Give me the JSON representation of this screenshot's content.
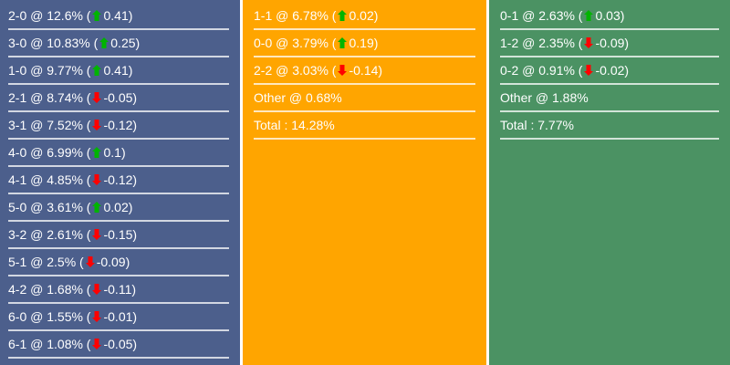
{
  "colors": {
    "up": "#00b400",
    "down": "#ff0000",
    "home": "#4c5f8c",
    "draw": "#ffa500",
    "away": "#4b9263"
  },
  "columns": [
    {
      "name": "home",
      "rows": [
        {
          "label": "2-0 @ 12.6% (",
          "trend": "up",
          "change": "0.41"
        },
        {
          "label": "3-0 @ 10.83% (",
          "trend": "up",
          "change": "0.25"
        },
        {
          "label": "1-0 @ 9.77% (",
          "trend": "up",
          "change": "0.41"
        },
        {
          "label": "2-1 @ 8.74% (",
          "trend": "down",
          "change": "-0.05"
        },
        {
          "label": "3-1 @ 7.52% (",
          "trend": "down",
          "change": "-0.12"
        },
        {
          "label": "4-0 @ 6.99% (",
          "trend": "up",
          "change": "0.1"
        },
        {
          "label": "4-1 @ 4.85% (",
          "trend": "down",
          "change": "-0.12"
        },
        {
          "label": "5-0 @ 3.61% (",
          "trend": "up",
          "change": "0.02"
        },
        {
          "label": "3-2 @ 2.61% (",
          "trend": "down",
          "change": "-0.15"
        },
        {
          "label": "5-1 @ 2.5% (",
          "trend": "down",
          "change": "-0.09"
        },
        {
          "label": "4-2 @ 1.68% (",
          "trend": "down",
          "change": "-0.11"
        },
        {
          "label": "6-0 @ 1.55% (",
          "trend": "down",
          "change": "-0.01"
        },
        {
          "label": "6-1 @ 1.08% (",
          "trend": "down",
          "change": "-0.05"
        }
      ]
    },
    {
      "name": "draw",
      "rows": [
        {
          "label": "1-1 @ 6.78% (",
          "trend": "up",
          "change": "0.02"
        },
        {
          "label": "0-0 @ 3.79% (",
          "trend": "up",
          "change": "0.19"
        },
        {
          "label": "2-2 @ 3.03% (",
          "trend": "down",
          "change": "-0.14"
        },
        {
          "label": "Other @ 0.68%"
        },
        {
          "label": "Total : 14.28%"
        }
      ]
    },
    {
      "name": "away",
      "rows": [
        {
          "label": "0-1 @ 2.63% (",
          "trend": "up",
          "change": "0.03"
        },
        {
          "label": "1-2 @ 2.35% (",
          "trend": "down",
          "change": "-0.09"
        },
        {
          "label": "0-2 @ 0.91% (",
          "trend": "down",
          "change": "-0.02"
        },
        {
          "label": "Other @ 1.88%"
        },
        {
          "label": "Total : 7.77%"
        }
      ]
    }
  ]
}
